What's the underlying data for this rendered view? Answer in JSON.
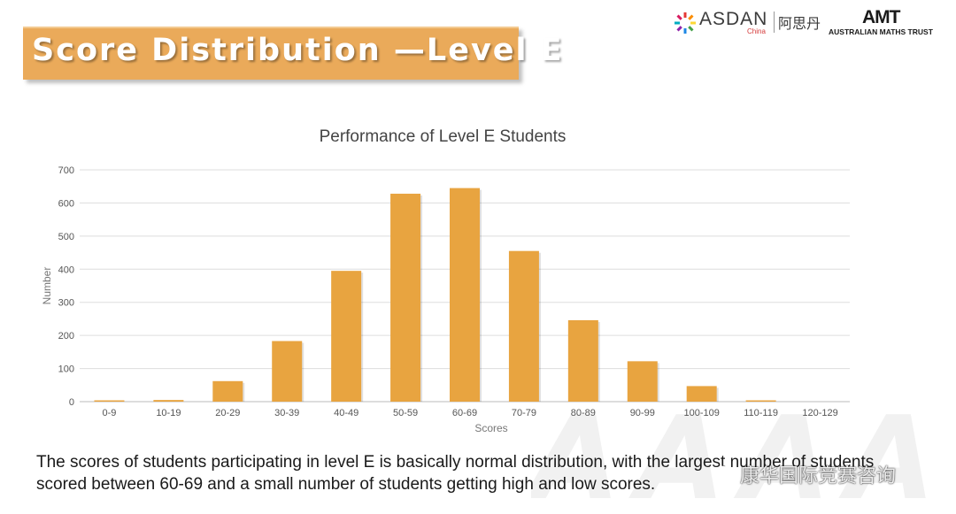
{
  "slide": {
    "title": "Score Distribution —Level E",
    "caption": "The scores of students participating in level E is basically normal distribution, with the largest number of students scored between 60-69 and a small number of students getting high and low scores."
  },
  "logos": {
    "asdan": {
      "name": "ASDAN",
      "sub": "China",
      "cn": "阿思丹"
    },
    "amt": {
      "mark": "AMT",
      "name": "AUSTRALIAN MATHS TRUST"
    }
  },
  "watermark": {
    "text": "康华国际竞赛咨询",
    "icon": "wechat-icon"
  },
  "colors": {
    "bar": "#e8a440",
    "banner": "#eaaa5a",
    "grid": "#dddddd"
  },
  "chart_data": {
    "type": "bar",
    "title": "Performance of Level E Students",
    "xlabel": "Scores",
    "ylabel": "Number",
    "categories": [
      "0-9",
      "10-19",
      "20-29",
      "30-39",
      "40-49",
      "50-59",
      "60-69",
      "70-79",
      "80-89",
      "90-99",
      "100-109",
      "110-119",
      "120-129"
    ],
    "values": [
      1,
      5,
      62,
      183,
      395,
      628,
      645,
      455,
      246,
      122,
      47,
      3,
      0
    ],
    "ylim": [
      0,
      700
    ],
    "yticks": [
      0,
      100,
      200,
      300,
      400,
      500,
      600,
      700
    ],
    "grid": true,
    "legend": "none"
  }
}
